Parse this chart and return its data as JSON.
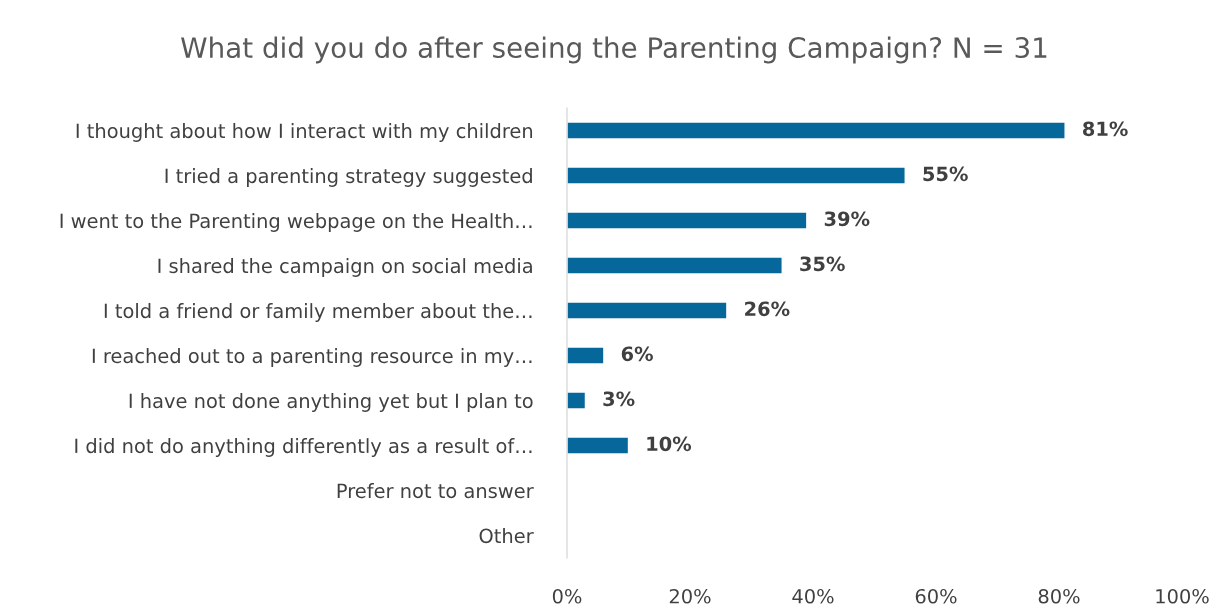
{
  "chart_data": {
    "type": "bar",
    "orientation": "horizontal",
    "title": "What did you do after seeing the Parenting Campaign? N = 31",
    "categories": [
      "I thought about how I interact with my children",
      "I tried a parenting strategy suggested",
      "I went to the Parenting webpage on the Health…",
      "I shared the campaign on social media",
      "I told a friend or family member about the…",
      "I reached out to a parenting resource in my…",
      "I have not done anything yet but I plan to",
      "I did not do anything differently as a result of…",
      "Prefer not to answer",
      "Other"
    ],
    "values": [
      81,
      55,
      39,
      35,
      26,
      6,
      3,
      10,
      null,
      null
    ],
    "value_labels": [
      "81%",
      "55%",
      "39%",
      "35%",
      "26%",
      "6%",
      "3%",
      "10%",
      null,
      null
    ],
    "color": "#05679a",
    "xlim": [
      0,
      100
    ],
    "xticks": [
      {
        "value": 0,
        "label": "0%"
      },
      {
        "value": 20,
        "label": "20%"
      },
      {
        "value": 40,
        "label": "40%"
      },
      {
        "value": 60,
        "label": "60%"
      },
      {
        "value": 80,
        "label": "80%"
      },
      {
        "value": 100,
        "label": "100%"
      }
    ],
    "grid": false,
    "legend": false
  }
}
